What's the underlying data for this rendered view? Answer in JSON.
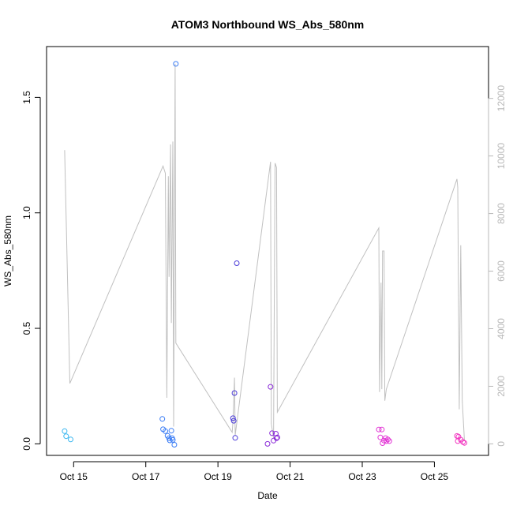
{
  "chart_data": {
    "type": "scatter",
    "title": "ATOM3 Northbound WS_Abs_580nm",
    "xlabel": "Date",
    "ylabel": "WS_Abs_580nm",
    "xlim": [
      "2023-10-14 06:00",
      "2023-10-26 12:00"
    ],
    "ylim_left": [
      -0.05,
      1.72
    ],
    "ylim_right": [
      -400,
      13800
    ],
    "x_ticks": [
      {
        "date": "2023-10-15",
        "label": "Oct 15"
      },
      {
        "date": "2023-10-17",
        "label": "Oct 17"
      },
      {
        "date": "2023-10-19",
        "label": "Oct 19"
      },
      {
        "date": "2023-10-21",
        "label": "Oct 21"
      },
      {
        "date": "2023-10-23",
        "label": "Oct 23"
      },
      {
        "date": "2023-10-25",
        "label": "Oct 25"
      }
    ],
    "y_ticks_left": [
      {
        "value": 0.0,
        "label": "0.0"
      },
      {
        "value": 0.5,
        "label": "0.5"
      },
      {
        "value": 1.0,
        "label": "1.0"
      },
      {
        "value": 1.5,
        "label": "1.5"
      }
    ],
    "y_ticks_right": [
      {
        "value": 0,
        "label": "0"
      },
      {
        "value": 2000,
        "label": "2000"
      },
      {
        "value": 4000,
        "label": "4000"
      },
      {
        "value": 6000,
        "label": "6000"
      },
      {
        "value": 8000,
        "label": "8000"
      },
      {
        "value": 10000,
        "label": "10000"
      },
      {
        "value": 12000,
        "label": "12000"
      }
    ],
    "grid": false,
    "legend": "none",
    "colors": {
      "line": "#c0c0c0",
      "frame": "#000000",
      "right_axis": "#b8b8b8"
    },
    "points": [
      {
        "x": "2023-10-14 18:00",
        "y": 0.055,
        "color": "#38b6f0"
      },
      {
        "x": "2023-10-14 19:00",
        "y": 0.033,
        "color": "#38b6f0"
      },
      {
        "x": "2023-10-14 22:00",
        "y": 0.019,
        "color": "#38b6f0"
      },
      {
        "x": "2023-10-17 11:00",
        "y": 0.108,
        "color": "#3a7cf5"
      },
      {
        "x": "2023-10-17 11:30",
        "y": 0.063,
        "color": "#3a7cf5"
      },
      {
        "x": "2023-10-17 13:00",
        "y": 0.055,
        "color": "#3a7cf5"
      },
      {
        "x": "2023-10-17 14:30",
        "y": 0.035,
        "color": "#3a7cf5"
      },
      {
        "x": "2023-10-17 15:30",
        "y": 0.024,
        "color": "#3a7cf5"
      },
      {
        "x": "2023-10-17 16:00",
        "y": 0.015,
        "color": "#3a7cf5"
      },
      {
        "x": "2023-10-17 17:00",
        "y": 0.057,
        "color": "#3a7cf5"
      },
      {
        "x": "2023-10-17 17:30",
        "y": 0.025,
        "color": "#3a7cf5"
      },
      {
        "x": "2023-10-17 18:00",
        "y": 0.017,
        "color": "#3a7cf5"
      },
      {
        "x": "2023-10-17 19:00",
        "y": -0.004,
        "color": "#3a7cf5"
      },
      {
        "x": "2023-10-17 20:00",
        "y": 1.645,
        "color": "#3a7cf5"
      },
      {
        "x": "2023-10-19 10:00",
        "y": 0.111,
        "color": "#4a3ad8"
      },
      {
        "x": "2023-10-19 10:30",
        "y": 0.1,
        "color": "#4a3ad8"
      },
      {
        "x": "2023-10-19 11:00",
        "y": 0.22,
        "color": "#4a3ad8"
      },
      {
        "x": "2023-10-19 11:30",
        "y": 0.026,
        "color": "#4a3ad8"
      },
      {
        "x": "2023-10-19 12:30",
        "y": 0.782,
        "color": "#4a3ad8"
      },
      {
        "x": "2023-10-20 09:00",
        "y": 0.0,
        "color": "#8a2ad8"
      },
      {
        "x": "2023-10-20 11:00",
        "y": 0.247,
        "color": "#8a2ad8"
      },
      {
        "x": "2023-10-20 12:00",
        "y": 0.046,
        "color": "#8a2ad8"
      },
      {
        "x": "2023-10-20 13:00",
        "y": 0.014,
        "color": "#8a2ad8"
      },
      {
        "x": "2023-10-20 14:30",
        "y": 0.044,
        "color": "#8a2ad8"
      },
      {
        "x": "2023-10-20 15:00",
        "y": 0.024,
        "color": "#8a2ad8"
      },
      {
        "x": "2023-10-20 15:30",
        "y": 0.028,
        "color": "#8a2ad8"
      },
      {
        "x": "2023-10-23 11:00",
        "y": 0.062,
        "color": "#e235d5"
      },
      {
        "x": "2023-10-23 12:00",
        "y": 0.028,
        "color": "#e235d5"
      },
      {
        "x": "2023-10-23 13:00",
        "y": 0.062,
        "color": "#e235d5"
      },
      {
        "x": "2023-10-23 13:30",
        "y": 0.003,
        "color": "#e235d5"
      },
      {
        "x": "2023-10-23 14:30",
        "y": 0.014,
        "color": "#e235d5"
      },
      {
        "x": "2023-10-23 15:30",
        "y": 0.025,
        "color": "#e235d5"
      },
      {
        "x": "2023-10-23 16:00",
        "y": 0.012,
        "color": "#e235d5"
      },
      {
        "x": "2023-10-23 17:00",
        "y": 0.019,
        "color": "#e235d5"
      },
      {
        "x": "2023-10-23 18:00",
        "y": 0.012,
        "color": "#e235d5"
      },
      {
        "x": "2023-10-25 15:00",
        "y": 0.034,
        "color": "#f235c0"
      },
      {
        "x": "2023-10-25 15:30",
        "y": 0.012,
        "color": "#f235c0"
      },
      {
        "x": "2023-10-25 16:00",
        "y": 0.031,
        "color": "#f235c0"
      },
      {
        "x": "2023-10-25 17:30",
        "y": 0.018,
        "color": "#f235c0"
      },
      {
        "x": "2023-10-25 19:00",
        "y": 0.008,
        "color": "#f235c0"
      },
      {
        "x": "2023-10-25 20:00",
        "y": 0.004,
        "color": "#f235c0"
      }
    ],
    "line": [
      {
        "x": "2023-10-14 18:00",
        "y": 10200
      },
      {
        "x": "2023-10-14 21:30",
        "y": 2100
      },
      {
        "x": "2023-10-17 11:30",
        "y": 9650
      },
      {
        "x": "2023-10-17 13:00",
        "y": 9400
      },
      {
        "x": "2023-10-17 14:00",
        "y": 1600
      },
      {
        "x": "2023-10-17 15:00",
        "y": 9300
      },
      {
        "x": "2023-10-17 15:30",
        "y": 5800
      },
      {
        "x": "2023-10-17 16:30",
        "y": 10400
      },
      {
        "x": "2023-10-17 17:00",
        "y": 4200
      },
      {
        "x": "2023-10-17 18:00",
        "y": 10500
      },
      {
        "x": "2023-10-17 18:30",
        "y": 600
      },
      {
        "x": "2023-10-17 19:30",
        "y": 13200
      },
      {
        "x": "2023-10-17 20:00",
        "y": 3500
      },
      {
        "x": "2023-10-19 09:30",
        "y": 400
      },
      {
        "x": "2023-10-19 10:00",
        "y": 800
      },
      {
        "x": "2023-10-19 11:00",
        "y": 2300
      },
      {
        "x": "2023-10-19 11:30",
        "y": 300
      },
      {
        "x": "2023-10-20 11:00",
        "y": 9800
      },
      {
        "x": "2023-10-20 11:30",
        "y": 700
      },
      {
        "x": "2023-10-20 13:00",
        "y": 200
      },
      {
        "x": "2023-10-20 14:00",
        "y": 9750
      },
      {
        "x": "2023-10-20 15:00",
        "y": 9600
      },
      {
        "x": "2023-10-20 15:30",
        "y": 1100
      },
      {
        "x": "2023-10-23 11:00",
        "y": 7500
      },
      {
        "x": "2023-10-23 11:30",
        "y": 1800
      },
      {
        "x": "2023-10-23 12:30",
        "y": 5600
      },
      {
        "x": "2023-10-23 13:00",
        "y": 1900
      },
      {
        "x": "2023-10-23 13:30",
        "y": 6700
      },
      {
        "x": "2023-10-23 14:30",
        "y": 6700
      },
      {
        "x": "2023-10-23 15:00",
        "y": 1500
      },
      {
        "x": "2023-10-23 16:00",
        "y": 1900
      },
      {
        "x": "2023-10-25 15:00",
        "y": 9200
      },
      {
        "x": "2023-10-25 15:30",
        "y": 8900
      },
      {
        "x": "2023-10-25 16:30",
        "y": 1200
      },
      {
        "x": "2023-10-25 17:30",
        "y": 6900
      },
      {
        "x": "2023-10-25 18:30",
        "y": 1500
      },
      {
        "x": "2023-10-25 20:00",
        "y": 100
      }
    ]
  }
}
